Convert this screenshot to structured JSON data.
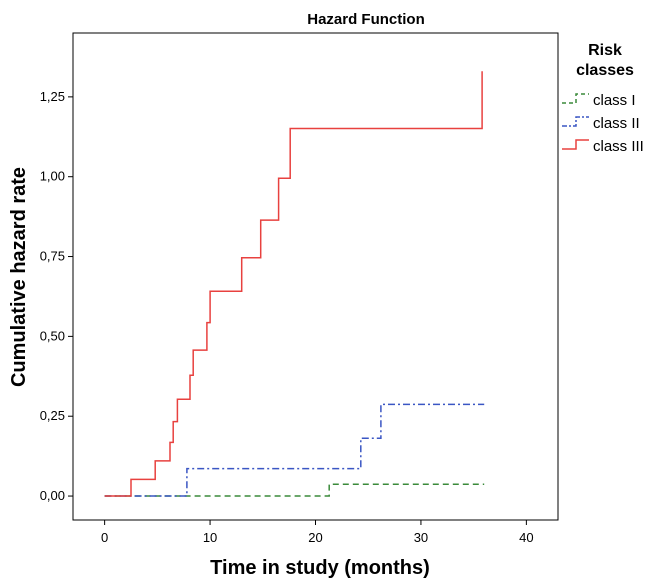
{
  "chart_data": {
    "type": "line",
    "title": "Hazard Function",
    "xlabel": "Time in study (months)",
    "ylabel": "Cumulative hazard rate",
    "xlim": [
      -3,
      43
    ],
    "ylim": [
      -0.075,
      1.45
    ],
    "x_ticks": [
      0,
      10,
      20,
      30,
      40
    ],
    "x_tick_labels": [
      "0",
      "10",
      "20",
      "30",
      "40"
    ],
    "y_ticks": [
      0,
      0.25,
      0.5,
      0.75,
      1.0,
      1.25
    ],
    "y_tick_labels": [
      "0,00",
      "0,25",
      "0,50",
      "0,75",
      "1,00",
      "1,25"
    ],
    "grid": false,
    "legend": {
      "title": "Risk classes",
      "title_lines": [
        "Risk",
        "classes"
      ],
      "position": "right"
    },
    "series": [
      {
        "name": "class I",
        "color": "#3a8a3a",
        "dash": "dashed",
        "x": [
          0,
          21.3,
          21.3,
          36
        ],
        "y": [
          0,
          0,
          0.037,
          0.037
        ]
      },
      {
        "name": "class II",
        "color": "#3a56c4",
        "dash": "dashdot",
        "x": [
          0,
          7.8,
          7.8,
          24.3,
          24.3,
          26.2,
          26.2,
          36
        ],
        "y": [
          0,
          0,
          0.086,
          0.086,
          0.181,
          0.181,
          0.287,
          0.287
        ]
      },
      {
        "name": "class III",
        "color": "#e8413f",
        "dash": "solid",
        "x": [
          0,
          2.5,
          2.5,
          4.8,
          4.8,
          6.2,
          6.2,
          6.5,
          6.5,
          6.9,
          6.9,
          7.2,
          7.2,
          8.1,
          8.1,
          8.4,
          8.4,
          8.8,
          8.8,
          9.7,
          9.7,
          10,
          10,
          13,
          13,
          14.8,
          14.8,
          16.5,
          16.5,
          17.6,
          17.6,
          35.8,
          35.8
        ],
        "y": [
          0,
          0,
          0.052,
          0.052,
          0.11,
          0.11,
          0.168,
          0.168,
          0.233,
          0.233,
          0.303,
          0.303,
          0.303,
          0.303,
          0.378,
          0.378,
          0.457,
          0.457,
          0.457,
          0.457,
          0.543,
          0.543,
          0.641,
          0.641,
          0.746,
          0.746,
          0.864,
          0.864,
          0.995,
          0.995,
          1.151,
          1.151,
          1.33
        ]
      }
    ]
  }
}
